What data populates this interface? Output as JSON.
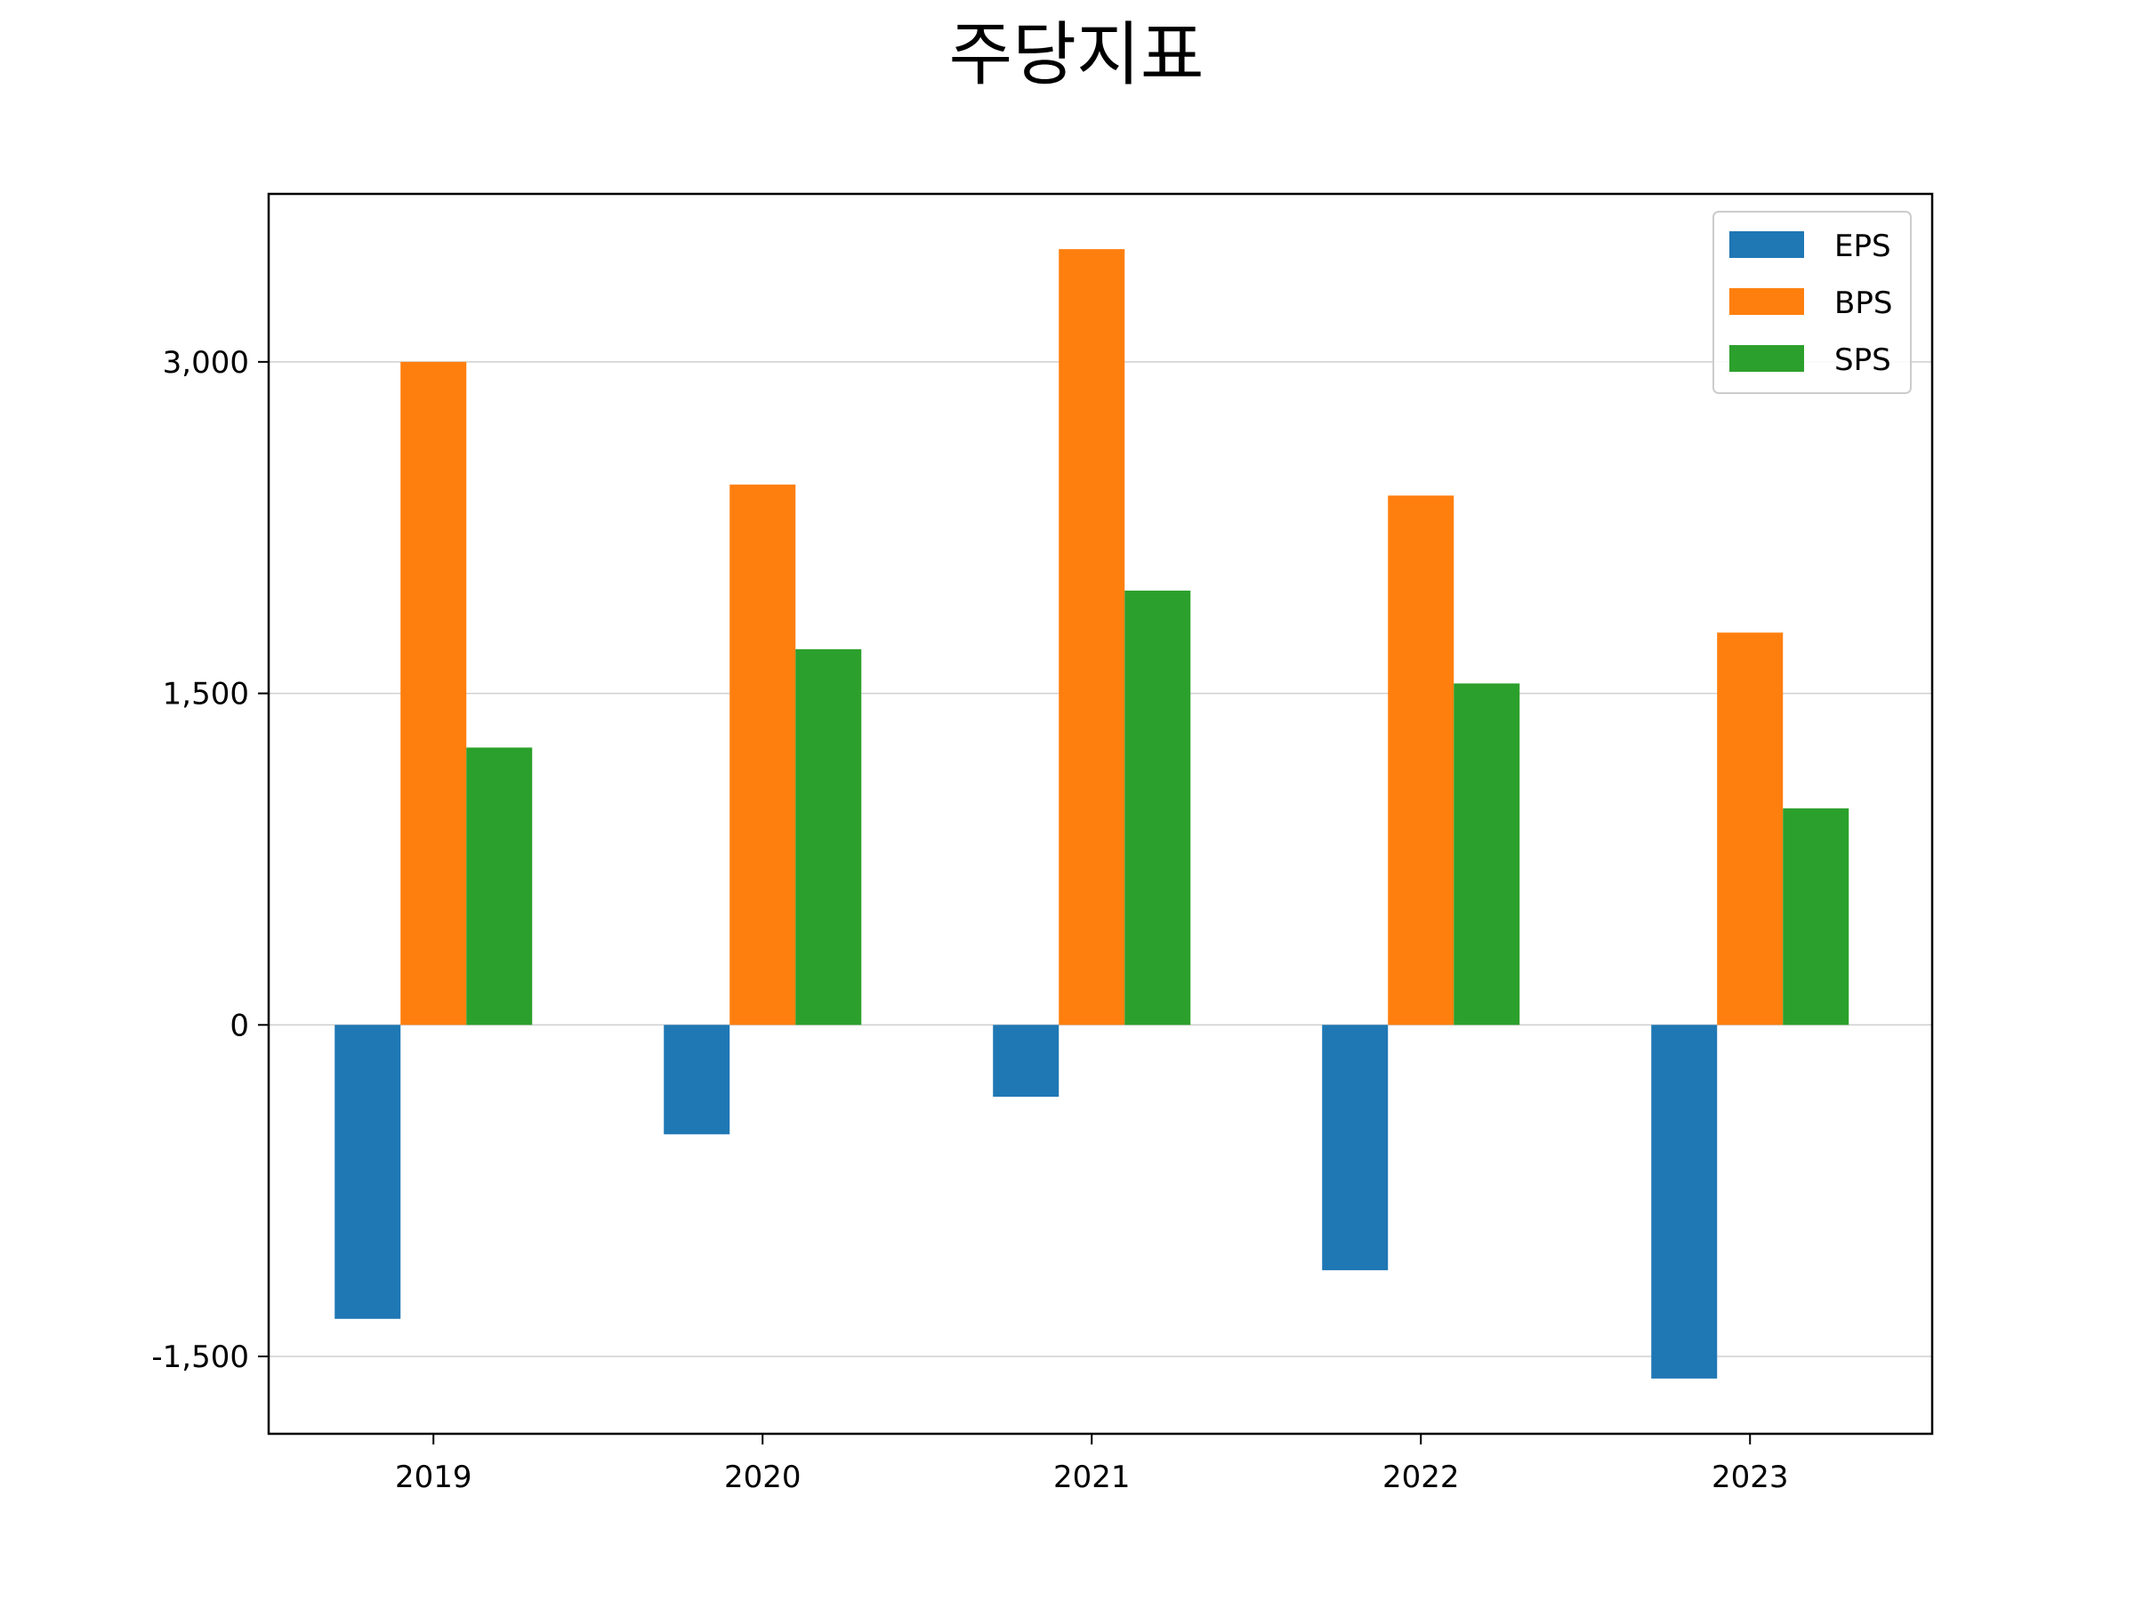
{
  "chart_data": {
    "type": "bar",
    "title": "주당지표",
    "xlabel": "",
    "ylabel": "",
    "categories": [
      "2019",
      "2020",
      "2021",
      "2022",
      "2023"
    ],
    "series": [
      {
        "name": "EPS",
        "color": "#1f77b4",
        "values": [
          -1330,
          -495,
          -325,
          -1110,
          -1600
        ]
      },
      {
        "name": "BPS",
        "color": "#ff7f0e",
        "values": [
          3000,
          2445,
          3510,
          2395,
          1775
        ]
      },
      {
        "name": "SPS",
        "color": "#2ca02c",
        "values": [
          1255,
          1700,
          1965,
          1545,
          980
        ]
      }
    ],
    "ylim": [
      -1850,
      3760
    ],
    "yticks": [
      -1500,
      0,
      1500,
      3000
    ],
    "ytick_labels": [
      "-1,500",
      "0",
      "1,500",
      "3,000"
    ],
    "grid": "y",
    "legend_position": "top-right"
  }
}
